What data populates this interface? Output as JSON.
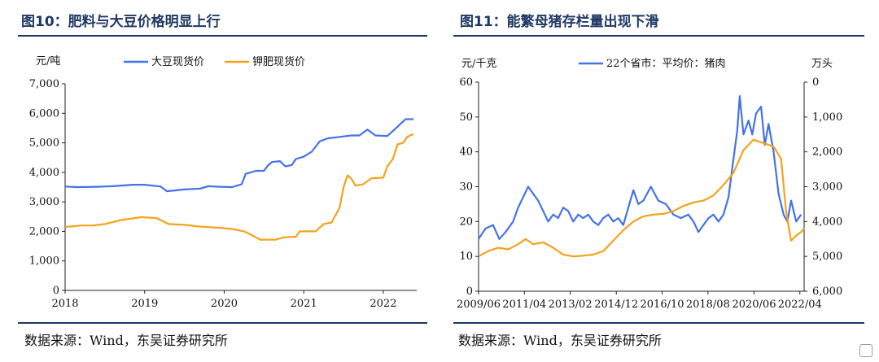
{
  "charts": [
    {
      "title": "图10：肥料与大豆价格明显上行",
      "source": "数据来源：Wind，东吴证券研究所"
    },
    {
      "title": "图11：能繁母猪存栏量出现下滑",
      "source": "数据来源：Wind，东吴证券研究所"
    }
  ],
  "chart_data": [
    {
      "type": "line",
      "title": "图10：肥料与大豆价格明显上行",
      "y_unit_label": "元/吨",
      "ylim": [
        0,
        7000
      ],
      "yticks": [
        "0",
        "1,000",
        "2,000",
        "3,000",
        "4,000",
        "5,000",
        "6,000",
        "7,000"
      ],
      "ytick_values": [
        0,
        1000,
        2000,
        3000,
        4000,
        5000,
        6000,
        7000
      ],
      "xlim": [
        2018,
        2022.42
      ],
      "xticks": [
        "2018",
        "2019",
        "2020",
        "2021",
        "2022"
      ],
      "xtick_values": [
        2018,
        2019,
        2020,
        2021,
        2022
      ],
      "legend_position": "top",
      "grid": false,
      "series": [
        {
          "name": "大豆现货价",
          "color": "#4472e8",
          "axis": "left",
          "points": [
            [
              2018.0,
              3520
            ],
            [
              2018.15,
              3500
            ],
            [
              2018.4,
              3510
            ],
            [
              2018.6,
              3530
            ],
            [
              2018.85,
              3580
            ],
            [
              2019.0,
              3580
            ],
            [
              2019.2,
              3520
            ],
            [
              2019.28,
              3360
            ],
            [
              2019.5,
              3420
            ],
            [
              2019.7,
              3450
            ],
            [
              2019.8,
              3530
            ],
            [
              2019.95,
              3510
            ],
            [
              2020.1,
              3500
            ],
            [
              2020.22,
              3600
            ],
            [
              2020.27,
              3950
            ],
            [
              2020.4,
              4050
            ],
            [
              2020.5,
              4050
            ],
            [
              2020.55,
              4230
            ],
            [
              2020.6,
              4350
            ],
            [
              2020.7,
              4380
            ],
            [
              2020.77,
              4200
            ],
            [
              2020.85,
              4250
            ],
            [
              2020.9,
              4450
            ],
            [
              2021.0,
              4530
            ],
            [
              2021.1,
              4700
            ],
            [
              2021.2,
              5050
            ],
            [
              2021.3,
              5150
            ],
            [
              2021.45,
              5200
            ],
            [
              2021.6,
              5250
            ],
            [
              2021.7,
              5250
            ],
            [
              2021.8,
              5450
            ],
            [
              2021.9,
              5250
            ],
            [
              2022.05,
              5230
            ],
            [
              2022.12,
              5400
            ],
            [
              2022.2,
              5600
            ],
            [
              2022.28,
              5800
            ],
            [
              2022.38,
              5800
            ]
          ]
        },
        {
          "name": "钾肥现货价",
          "color": "#f5a21b",
          "axis": "left",
          "points": [
            [
              2018.0,
              2150
            ],
            [
              2018.2,
              2200
            ],
            [
              2018.35,
              2200
            ],
            [
              2018.5,
              2250
            ],
            [
              2018.7,
              2380
            ],
            [
              2018.95,
              2480
            ],
            [
              2019.15,
              2450
            ],
            [
              2019.3,
              2250
            ],
            [
              2019.5,
              2220
            ],
            [
              2019.7,
              2160
            ],
            [
              2019.95,
              2120
            ],
            [
              2020.1,
              2080
            ],
            [
              2020.25,
              2000
            ],
            [
              2020.35,
              1870
            ],
            [
              2020.45,
              1720
            ],
            [
              2020.65,
              1720
            ],
            [
              2020.75,
              1800
            ],
            [
              2020.9,
              1820
            ],
            [
              2020.95,
              2000
            ],
            [
              2021.15,
              2000
            ],
            [
              2021.25,
              2250
            ],
            [
              2021.35,
              2300
            ],
            [
              2021.45,
              2800
            ],
            [
              2021.5,
              3500
            ],
            [
              2021.55,
              3900
            ],
            [
              2021.6,
              3780
            ],
            [
              2021.65,
              3550
            ],
            [
              2021.75,
              3600
            ],
            [
              2021.85,
              3800
            ],
            [
              2022.0,
              3820
            ],
            [
              2022.05,
              4200
            ],
            [
              2022.12,
              4450
            ],
            [
              2022.18,
              4950
            ],
            [
              2022.25,
              5000
            ],
            [
              2022.3,
              5200
            ],
            [
              2022.38,
              5300
            ]
          ]
        }
      ]
    },
    {
      "type": "line",
      "title": "图11：能繁母猪存栏量出现下滑",
      "y_unit_label": "元/千克",
      "y2_unit_label": "万头",
      "ylim": [
        0,
        60
      ],
      "yticks": [
        "0",
        "10",
        "20",
        "30",
        "40",
        "50",
        "60"
      ],
      "ytick_values": [
        0,
        10,
        20,
        30,
        40,
        50,
        60
      ],
      "y2lim": [
        6000,
        0
      ],
      "y2ticks": [
        "0",
        "1,000",
        "2,000",
        "3,000",
        "4,000",
        "5,000",
        "6,000"
      ],
      "y2tick_values": [
        0,
        1000,
        2000,
        3000,
        4000,
        5000,
        6000
      ],
      "xlim": [
        2009.42,
        2022.42
      ],
      "xticks": [
        "2009/06",
        "2011/04",
        "2013/02",
        "2014/12",
        "2016/10",
        "2018/08",
        "2020/06",
        "2022/04"
      ],
      "xtick_values": [
        2009.42,
        2011.25,
        2013.08,
        2014.92,
        2016.75,
        2018.58,
        2020.42,
        2022.25
      ],
      "legend_position": "top",
      "grid": false,
      "series": [
        {
          "name": "22个省市：平均价：猪肉",
          "color": "#4472e8",
          "axis": "left",
          "points": [
            [
              2009.42,
              15
            ],
            [
              2009.7,
              18
            ],
            [
              2010.0,
              19
            ],
            [
              2010.25,
              15
            ],
            [
              2010.5,
              17
            ],
            [
              2010.8,
              20
            ],
            [
              2011.0,
              24
            ],
            [
              2011.2,
              27
            ],
            [
              2011.4,
              30
            ],
            [
              2011.6,
              28
            ],
            [
              2011.8,
              26
            ],
            [
              2012.0,
              23
            ],
            [
              2012.2,
              20
            ],
            [
              2012.4,
              22
            ],
            [
              2012.6,
              21
            ],
            [
              2012.8,
              24
            ],
            [
              2013.0,
              23
            ],
            [
              2013.2,
              20
            ],
            [
              2013.4,
              22
            ],
            [
              2013.6,
              21
            ],
            [
              2013.8,
              22
            ],
            [
              2014.0,
              20
            ],
            [
              2014.2,
              19
            ],
            [
              2014.4,
              21
            ],
            [
              2014.6,
              22
            ],
            [
              2014.8,
              20
            ],
            [
              2015.0,
              21
            ],
            [
              2015.2,
              19
            ],
            [
              2015.4,
              24
            ],
            [
              2015.6,
              29
            ],
            [
              2015.8,
              25
            ],
            [
              2016.0,
              26
            ],
            [
              2016.3,
              30
            ],
            [
              2016.6,
              26
            ],
            [
              2016.9,
              25
            ],
            [
              2017.2,
              22
            ],
            [
              2017.5,
              21
            ],
            [
              2017.8,
              22
            ],
            [
              2018.0,
              20
            ],
            [
              2018.2,
              17
            ],
            [
              2018.4,
              19
            ],
            [
              2018.6,
              21
            ],
            [
              2018.8,
              22
            ],
            [
              2019.0,
              20
            ],
            [
              2019.2,
              22
            ],
            [
              2019.4,
              27
            ],
            [
              2019.6,
              38
            ],
            [
              2019.75,
              46
            ],
            [
              2019.85,
              56
            ],
            [
              2020.0,
              45
            ],
            [
              2020.2,
              49
            ],
            [
              2020.35,
              45
            ],
            [
              2020.5,
              51
            ],
            [
              2020.7,
              53
            ],
            [
              2020.85,
              42
            ],
            [
              2021.0,
              48
            ],
            [
              2021.2,
              40
            ],
            [
              2021.4,
              28
            ],
            [
              2021.6,
              22
            ],
            [
              2021.75,
              20
            ],
            [
              2021.9,
              26
            ],
            [
              2022.1,
              20
            ],
            [
              2022.3,
              22
            ]
          ]
        },
        {
          "name": "",
          "color": "#f5a21b",
          "axis": "right",
          "points": [
            [
              2009.42,
              5000
            ],
            [
              2009.8,
              4850
            ],
            [
              2010.2,
              4750
            ],
            [
              2010.6,
              4800
            ],
            [
              2011.0,
              4650
            ],
            [
              2011.3,
              4500
            ],
            [
              2011.6,
              4650
            ],
            [
              2012.0,
              4600
            ],
            [
              2012.4,
              4750
            ],
            [
              2012.8,
              4950
            ],
            [
              2013.2,
              5000
            ],
            [
              2013.6,
              4980
            ],
            [
              2014.0,
              4950
            ],
            [
              2014.4,
              4850
            ],
            [
              2014.8,
              4550
            ],
            [
              2015.2,
              4250
            ],
            [
              2015.6,
              4000
            ],
            [
              2016.0,
              3850
            ],
            [
              2016.4,
              3800
            ],
            [
              2016.8,
              3780
            ],
            [
              2017.2,
              3700
            ],
            [
              2017.6,
              3550
            ],
            [
              2018.0,
              3450
            ],
            [
              2018.4,
              3400
            ],
            [
              2018.8,
              3250
            ],
            [
              2019.2,
              2950
            ],
            [
              2019.6,
              2600
            ],
            [
              2020.0,
              1950
            ],
            [
              2020.4,
              1650
            ],
            [
              2020.8,
              1750
            ],
            [
              2021.2,
              1850
            ],
            [
              2021.5,
              2200
            ],
            [
              2021.7,
              3700
            ],
            [
              2021.9,
              4550
            ],
            [
              2022.1,
              4400
            ],
            [
              2022.3,
              4300
            ],
            [
              2022.42,
              4200
            ]
          ]
        }
      ]
    }
  ]
}
